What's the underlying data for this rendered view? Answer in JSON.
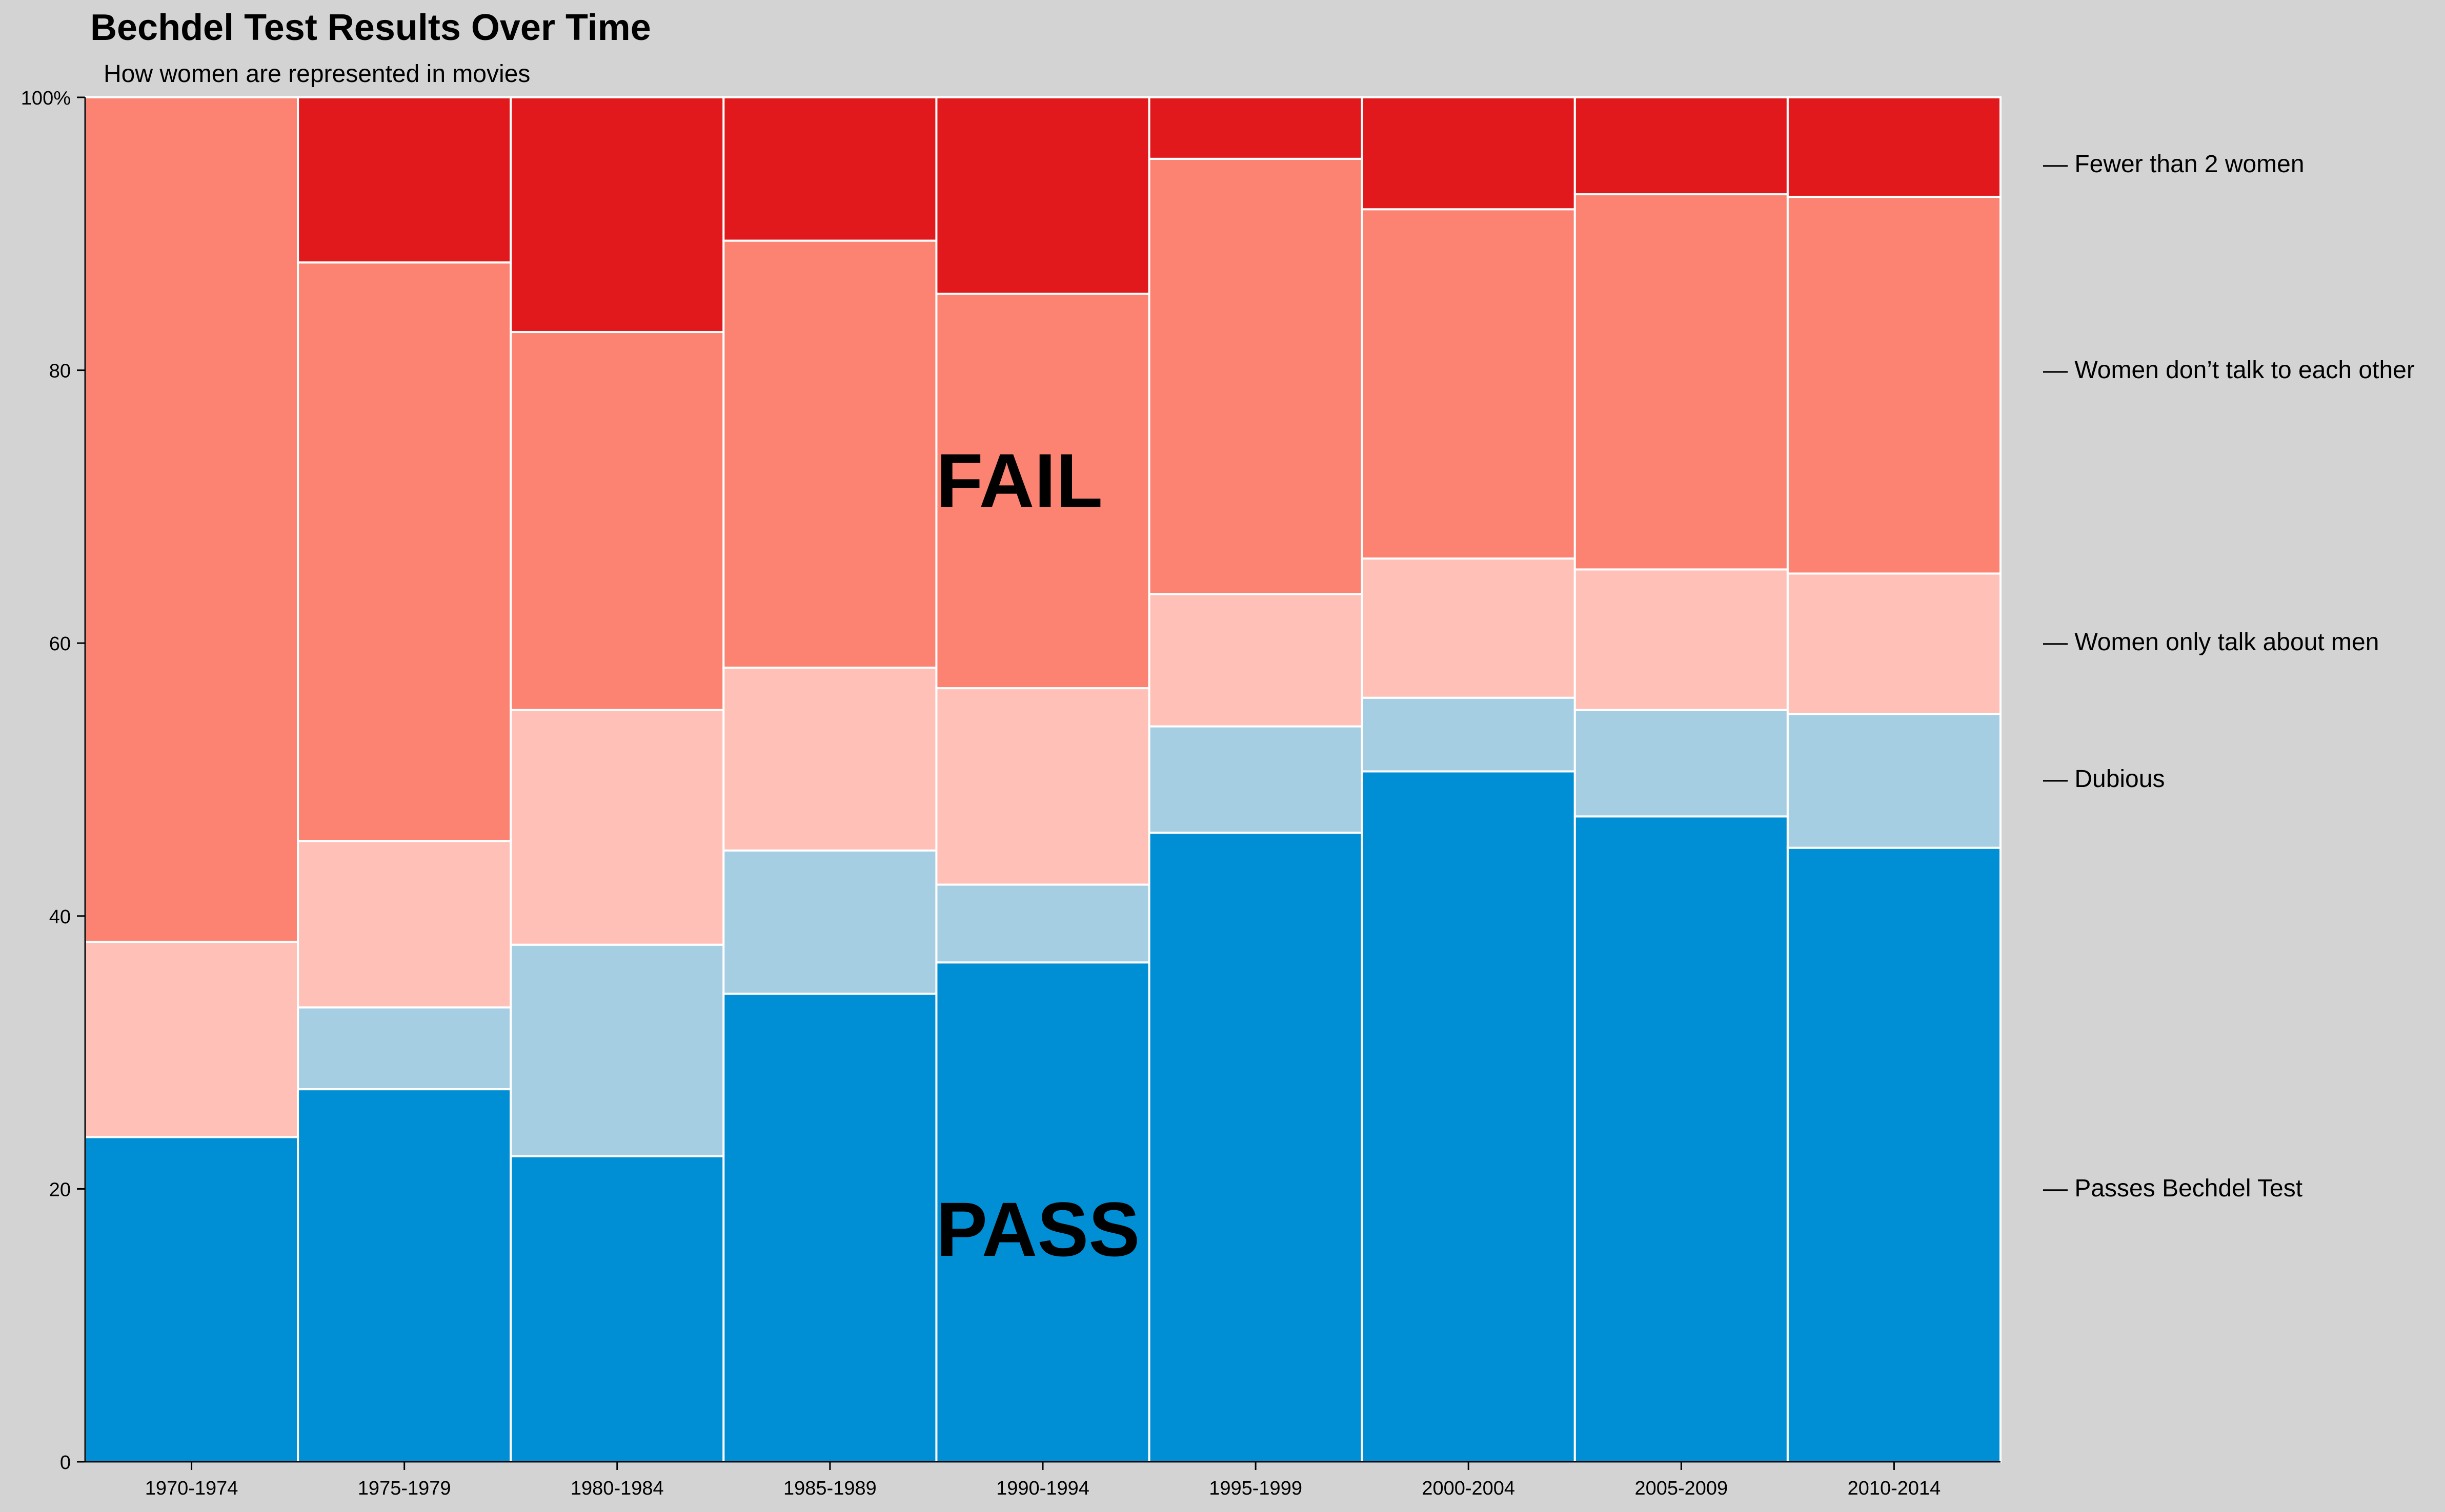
{
  "chart_data": {
    "type": "bar",
    "stacked": true,
    "normalized": true,
    "title": "Bechdel Test Results Over Time",
    "subtitle": "How women are represented in movies",
    "categories": [
      "1970-1974",
      "1975-1979",
      "1980-1984",
      "1985-1989",
      "1990-1994",
      "1995-1999",
      "2000-2004",
      "2005-2009",
      "2010-2014"
    ],
    "series": [
      {
        "name": "Passes Bechdel Test",
        "color": "#008fd5",
        "values": [
          23.8,
          27.3,
          22.4,
          34.3,
          36.6,
          46.1,
          50.6,
          47.3,
          45.0
        ]
      },
      {
        "name": "Dubious",
        "color": "#a6cee3",
        "values": [
          0.0,
          6.0,
          15.5,
          10.5,
          5.7,
          7.8,
          5.4,
          7.8,
          9.8
        ]
      },
      {
        "name": "Women only talk about men",
        "color": "#ffc0b8",
        "values": [
          14.3,
          12.2,
          17.2,
          13.4,
          14.4,
          9.7,
          10.2,
          10.3,
          10.3
        ]
      },
      {
        "name": "Women don’t talk to each other",
        "color": "#fc8272",
        "values": [
          61.9,
          42.4,
          27.7,
          31.3,
          28.9,
          31.9,
          25.6,
          27.5,
          27.6
        ]
      },
      {
        "name": "Fewer than 2 women",
        "color": "#e1191c",
        "values": [
          0.0,
          12.1,
          17.2,
          10.5,
          14.4,
          4.5,
          8.2,
          7.1,
          7.3
        ]
      }
    ],
    "legend_labels": {
      "fewer": "— Fewer than 2 women",
      "dont_talk": "— Women don’t talk to each other",
      "only_men": "— Women only talk about men",
      "dubious": "— Dubious",
      "passes": "— Passes Bechdel Test"
    },
    "annotations": {
      "fail": "FAIL",
      "pass": "PASS"
    },
    "y_ticks": [
      "0",
      "20",
      "40",
      "60",
      "80",
      "100%"
    ],
    "ylim": [
      0,
      100
    ],
    "xlabel": "",
    "ylabel": "",
    "grid": false,
    "legend": "right"
  }
}
